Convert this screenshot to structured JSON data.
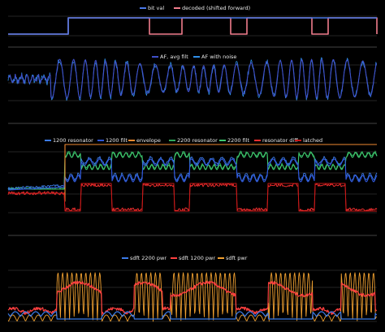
{
  "chart_data": [
    {
      "type": "line",
      "title": "",
      "legend": "top",
      "grid": true,
      "ylim": [
        -0.1,
        1.1
      ],
      "x": [
        0,
        1,
        2,
        3,
        4,
        5,
        6,
        7,
        8,
        9,
        10,
        11,
        12,
        13,
        14,
        15,
        16,
        17,
        18,
        19,
        20,
        21
      ],
      "series": [
        {
          "name": "bit val",
          "color": "#4a78e8",
          "values": [
            0,
            0,
            1,
            1,
            1,
            1,
            1,
            1,
            1,
            1,
            1,
            1,
            1,
            1,
            1,
            1,
            1,
            1,
            1,
            1,
            1,
            1
          ]
        },
        {
          "name": "decoded (shifted forward)",
          "color": "#f07c8c",
          "values": [
            0,
            0,
            1,
            1,
            1,
            1,
            1,
            0,
            0,
            1,
            1,
            1,
            0,
            1,
            1,
            1,
            1,
            0,
            1,
            1,
            1,
            0
          ]
        }
      ]
    },
    {
      "type": "line",
      "title": "",
      "legend": "top",
      "grid": true,
      "ylim": [
        -1.2,
        1.2
      ],
      "series": [
        {
          "name": "AF, avg filt",
          "color": "#3f4fc8"
        },
        {
          "name": "AF with noise",
          "color": "#2f8fe8"
        }
      ]
    },
    {
      "type": "line",
      "title": "",
      "legend": "top",
      "grid": true,
      "ylim": [
        -1.2,
        1.2
      ],
      "series": [
        {
          "name": "1200 resonator",
          "color": "#3b7be8"
        },
        {
          "name": "1200 filt",
          "color": "#2f56d8"
        },
        {
          "name": "envelope",
          "color": "#f08a30"
        },
        {
          "name": "2200 resonator",
          "color": "#2fa85a"
        },
        {
          "name": "2200 filt",
          "color": "#3fc86e"
        },
        {
          "name": "resonator diff",
          "color": "#ff3030"
        },
        {
          "name": "latched",
          "color": "#c81818"
        }
      ]
    },
    {
      "type": "line",
      "title": "",
      "legend": "top",
      "grid": true,
      "ylim": [
        0,
        1
      ],
      "series": [
        {
          "name": "sdft 2200 pwr",
          "color": "#3b7be8"
        },
        {
          "name": "sdft 1200 pwr",
          "color": "#ff4040"
        },
        {
          "name": "sdft pwr",
          "color": "#f0a030"
        }
      ]
    }
  ]
}
